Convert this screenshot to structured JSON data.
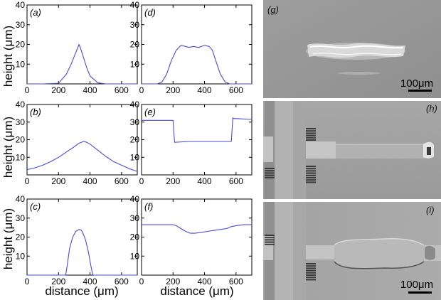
{
  "chart_data": [
    {
      "type": "line",
      "panel_label": "(a)",
      "xlim": [
        0,
        700
      ],
      "ylim": [
        0,
        40
      ],
      "xticks": [
        0,
        200,
        400,
        600
      ],
      "yticks": [
        10,
        20,
        30,
        40
      ],
      "series": [
        {
          "color": "#4a4ad8",
          "x": [
            0,
            100,
            200,
            250,
            280,
            300,
            320,
            330,
            340,
            360,
            380,
            400,
            450,
            500,
            600,
            700
          ],
          "y": [
            0,
            0,
            0.3,
            5,
            10,
            14,
            18,
            20,
            18,
            13,
            8,
            4,
            0.5,
            0,
            0,
            0
          ]
        }
      ]
    },
    {
      "type": "line",
      "panel_label": "(d)",
      "xlim": [
        0,
        700
      ],
      "ylim": [
        0,
        40
      ],
      "xticks": [
        0,
        200,
        400,
        600
      ],
      "yticks": [
        10,
        20,
        30,
        40
      ],
      "series": [
        {
          "color": "#4a4ad8",
          "x": [
            0,
            100,
            130,
            160,
            190,
            220,
            250,
            280,
            300,
            330,
            360,
            400,
            430,
            450,
            470,
            500,
            530,
            560,
            600,
            700
          ],
          "y": [
            0,
            0,
            1,
            5,
            12,
            17,
            19.5,
            19,
            18.5,
            19,
            18.5,
            19.5,
            19,
            17,
            12,
            5,
            1,
            0,
            0,
            0
          ]
        }
      ]
    },
    {
      "type": "line",
      "panel_label": "(b)",
      "xlim": [
        0,
        700
      ],
      "ylim": [
        0,
        40
      ],
      "xticks": [
        0,
        200,
        400,
        600
      ],
      "yticks": [
        10,
        20,
        30,
        40
      ],
      "series": [
        {
          "color": "#4a4ad8",
          "x": [
            0,
            50,
            100,
            150,
            200,
            250,
            300,
            330,
            360,
            380,
            400,
            450,
            500,
            550,
            600,
            650,
            700
          ],
          "y": [
            3,
            4,
            5.5,
            7.5,
            10,
            13,
            16,
            18,
            19,
            18.5,
            17.5,
            14,
            10.5,
            7.5,
            5.5,
            3.5,
            2
          ]
        }
      ]
    },
    {
      "type": "line",
      "panel_label": "(e)",
      "xlim": [
        0,
        700
      ],
      "ylim": [
        0,
        40
      ],
      "xticks": [
        0,
        200,
        400,
        600
      ],
      "yticks": [
        10,
        20,
        30,
        40
      ],
      "series": [
        {
          "color": "#4a4ad8",
          "x": [
            0,
            100,
            190,
            200,
            205,
            210,
            300,
            400,
            500,
            570,
            575,
            580,
            585,
            600,
            700
          ],
          "y": [
            31,
            31,
            31,
            31,
            24,
            18.5,
            19,
            19,
            19,
            19,
            26,
            32.5,
            32,
            32,
            31.5
          ]
        }
      ]
    },
    {
      "type": "line",
      "panel_label": "(c)",
      "xlim": [
        0,
        700
      ],
      "ylim": [
        0,
        40
      ],
      "xticks": [
        0,
        200,
        400,
        600
      ],
      "yticks": [
        10,
        20,
        30,
        40
      ],
      "series": [
        {
          "color": "#4a4ad8",
          "x": [
            0,
            100,
            200,
            245,
            255,
            270,
            290,
            310,
            330,
            340,
            350,
            370,
            390,
            405,
            415,
            420,
            500,
            600,
            700
          ],
          "y": [
            0,
            0,
            0,
            0,
            5,
            14,
            20,
            23,
            24,
            23.8,
            23,
            19,
            12,
            5,
            1,
            0,
            0,
            0,
            0
          ]
        }
      ]
    },
    {
      "type": "line",
      "panel_label": "(f)",
      "xlim": [
        0,
        700
      ],
      "ylim": [
        0,
        40
      ],
      "xticks": [
        0,
        200,
        400,
        600
      ],
      "yticks": [
        10,
        20,
        30,
        40
      ],
      "series": [
        {
          "color": "#4a4ad8",
          "x": [
            0,
            100,
            200,
            220,
            250,
            280,
            310,
            340,
            380,
            420,
            460,
            500,
            540,
            570,
            600,
            650,
            700
          ],
          "y": [
            26.5,
            26.5,
            26.5,
            26,
            24.5,
            23,
            22,
            22,
            22.5,
            23,
            23.5,
            24,
            24.5,
            25.5,
            26,
            26.5,
            26.5
          ]
        }
      ]
    }
  ],
  "axes": {
    "ylabel": "height (μm)",
    "xlabel": "distance (μm)"
  },
  "sem_panels": [
    {
      "label": "(g)",
      "scale_bar": "100μm"
    },
    {
      "label": "(h)"
    },
    {
      "label": "(i)",
      "scale_bar": "100μm"
    }
  ]
}
